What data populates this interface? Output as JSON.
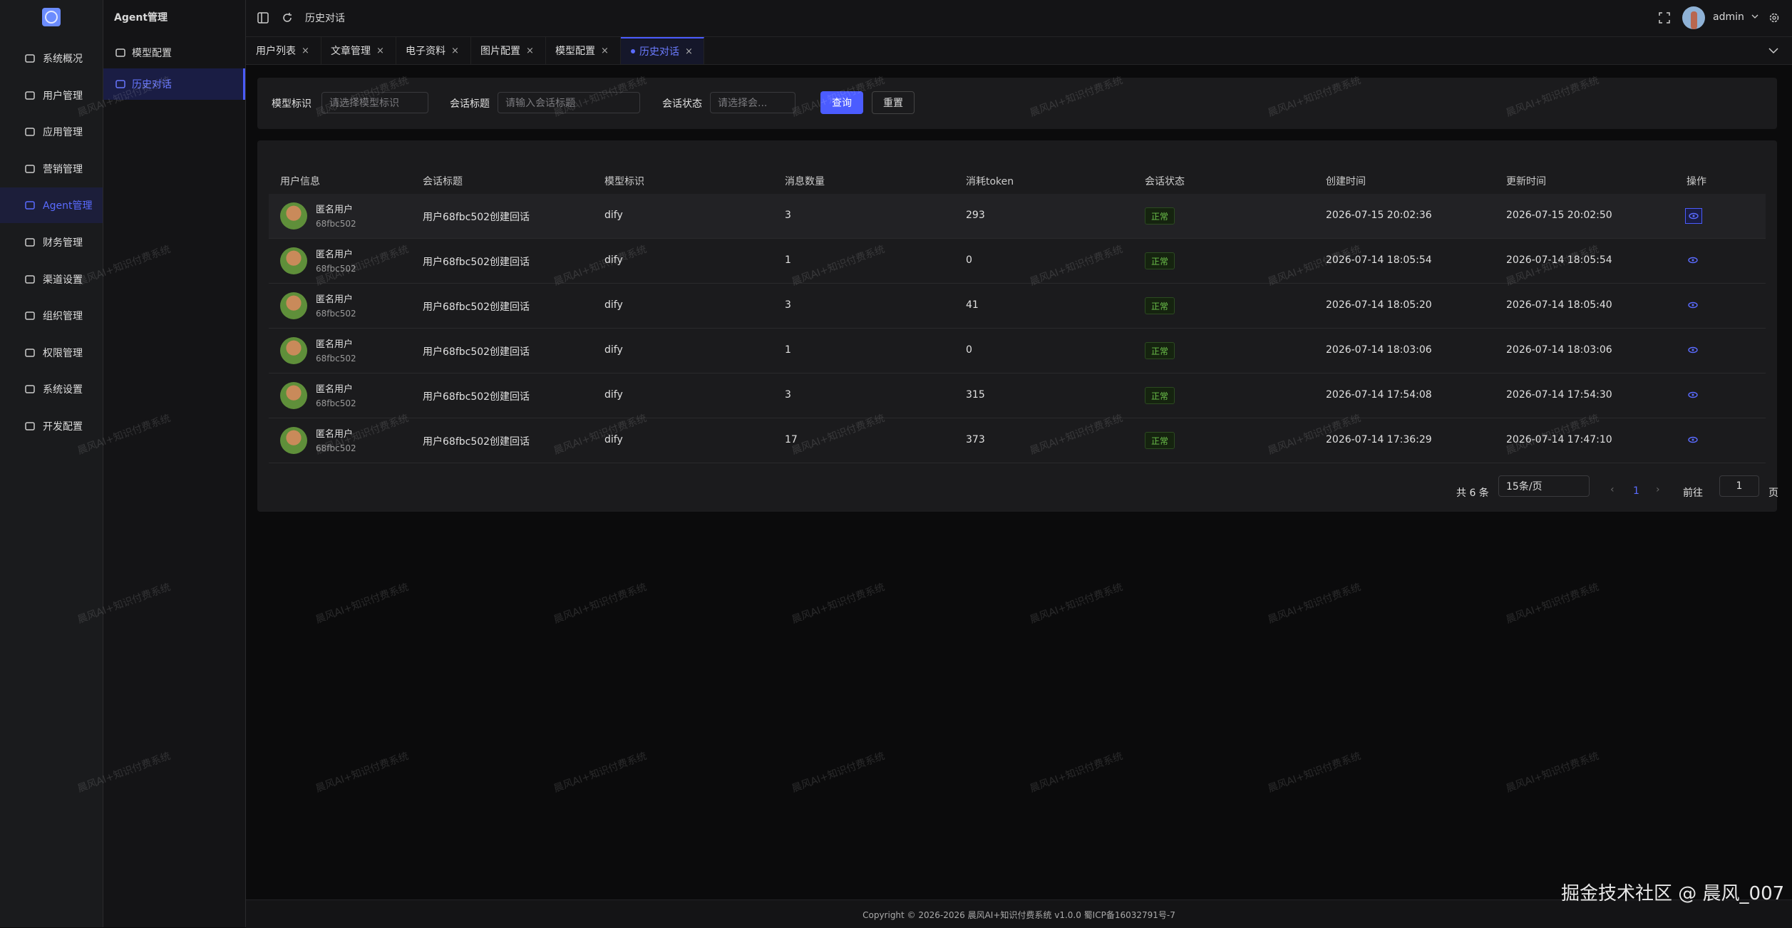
{
  "sidebar": {
    "menu": [
      "系统概况",
      "用户管理",
      "应用管理",
      "营销管理",
      "Agent管理",
      "财务管理",
      "渠道设置",
      "组织管理",
      "权限管理",
      "系统设置",
      "开发配置"
    ],
    "active": 4
  },
  "submenu": {
    "title": "Agent管理",
    "items": [
      "模型配置",
      "历史对话"
    ],
    "active": 1
  },
  "topbar": {
    "breadcrumb": "历史对话",
    "user": "admin"
  },
  "tabs": {
    "items": [
      "用户列表",
      "文章管理",
      "电子资料",
      "图片配置",
      "模型配置",
      "历史对话"
    ],
    "active": 5
  },
  "filters": [
    {
      "label": "模型标识",
      "placeholder": "请选择模型标识"
    },
    {
      "label": "会话标题",
      "placeholder": "请输入会话标题"
    },
    {
      "label": "会话状态",
      "placeholder": "请选择会..."
    }
  ],
  "buttons": [
    "查询",
    "重置"
  ],
  "table": {
    "headers": [
      "用户信息",
      "会话标题",
      "模型标识",
      "消息数量",
      "消耗token",
      "会话状态",
      "创建时间",
      "更新时间",
      "操作"
    ],
    "rows": [
      {
        "name": "匿名用户",
        "id": "68fbc502",
        "title": "用户68fbc502创建回话",
        "model": "dify",
        "messages": "3",
        "tokens": "293",
        "status": "正常",
        "created": "2026-07-15 20:02:36",
        "updated": "2026-07-15 20:02:50"
      },
      {
        "name": "匿名用户",
        "id": "68fbc502",
        "title": "用户68fbc502创建回话",
        "model": "dify",
        "messages": "1",
        "tokens": "0",
        "status": "正常",
        "created": "2026-07-14 18:05:54",
        "updated": "2026-07-14 18:05:54"
      },
      {
        "name": "匿名用户",
        "id": "68fbc502",
        "title": "用户68fbc502创建回话",
        "model": "dify",
        "messages": "3",
        "tokens": "41",
        "status": "正常",
        "created": "2026-07-14 18:05:20",
        "updated": "2026-07-14 18:05:40"
      },
      {
        "name": "匿名用户",
        "id": "68fbc502",
        "title": "用户68fbc502创建回话",
        "model": "dify",
        "messages": "1",
        "tokens": "0",
        "status": "正常",
        "created": "2026-07-14 18:03:06",
        "updated": "2026-07-14 18:03:06"
      },
      {
        "name": "匿名用户",
        "id": "68fbc502",
        "title": "用户68fbc502创建回话",
        "model": "dify",
        "messages": "3",
        "tokens": "315",
        "status": "正常",
        "created": "2026-07-14 17:54:08",
        "updated": "2026-07-14 17:54:30"
      },
      {
        "name": "匿名用户",
        "id": "68fbc502",
        "title": "用户68fbc502创建回话",
        "model": "dify",
        "messages": "17",
        "tokens": "373",
        "status": "正常",
        "created": "2026-07-14 17:36:29",
        "updated": "2026-07-14 17:47:10"
      }
    ]
  },
  "pagination": {
    "total": "共 6 条",
    "page_size": "15条/页",
    "current": "1",
    "goto": "前往",
    "goto_value": "1",
    "page_unit": "页"
  },
  "footer": "Copyright © 2026-2026 晨风AI+知识付费系统 v1.0.0  蜀ICP备16032791号-7",
  "watermark": "晨风AI+知识付费系统",
  "corner": "掘金技术社区 @ 晨风_007"
}
